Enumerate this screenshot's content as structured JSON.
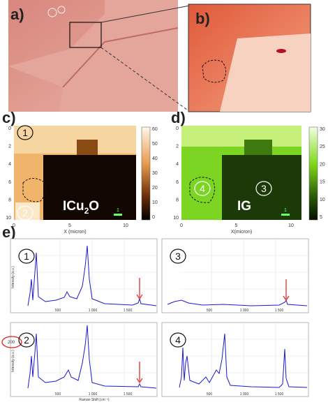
{
  "panels": {
    "a": {
      "label": "a)"
    },
    "b": {
      "label": "b)"
    },
    "c": {
      "label": "c)",
      "map_label": "ICu",
      "map_label_sub": "2",
      "map_label_tail": "O",
      "markers": [
        "1",
        "2"
      ],
      "scale_bar": "1",
      "yticks": [
        "0",
        "2",
        "4",
        "6",
        "8",
        "10"
      ],
      "xticks": [
        "0",
        "5",
        "10"
      ],
      "xlabel": "X (micron)",
      "colorbar_ticks": [
        "60",
        "50",
        "40",
        "30",
        "20",
        "10",
        "0"
      ]
    },
    "d": {
      "label": "d)",
      "map_label": "IG",
      "markers": [
        "4",
        "3"
      ],
      "scale_bar": "1",
      "yticks": [
        "0",
        "2",
        "4",
        "6",
        "8",
        "10"
      ],
      "xticks": [
        "0",
        "5",
        "10"
      ],
      "xlabel": "X(micron)",
      "colorbar_ticks": [
        "30",
        "25",
        "20",
        "15",
        "10",
        "5"
      ]
    },
    "e": {
      "label": "e)",
      "plots": [
        {
          "marker": "1",
          "xticks": [
            "500",
            "1 000",
            "1 500"
          ],
          "ylabel": "Intensity (a.u.)"
        },
        {
          "marker": "3",
          "xticks": [
            "500",
            "1 000",
            "1 500"
          ]
        },
        {
          "marker": "2",
          "xticks": [
            "500",
            "1 000",
            "1 500"
          ],
          "ylabel": "Intensity (a.u.)",
          "highlight_tick": "200",
          "xlabel": "Raman Shift (cm⁻¹)"
        },
        {
          "marker": "4",
          "xticks": [
            "500",
            "1 000",
            "1 500"
          ]
        }
      ]
    }
  }
}
